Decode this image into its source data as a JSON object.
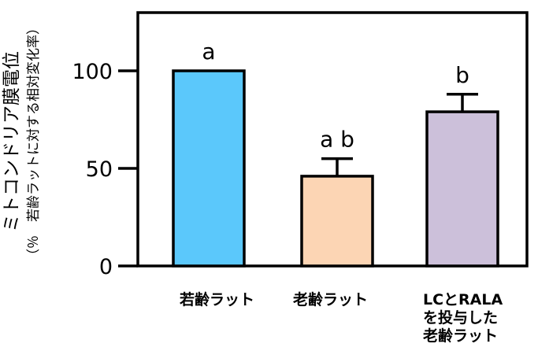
{
  "chart_data": {
    "type": "bar",
    "ylabel": "ミトコンドリア膜電位",
    "ylabel_sub": "（％　若齢ラットに対する相対変化率）",
    "ylim": [
      0,
      128
    ],
    "yticks": [
      0,
      50,
      100
    ],
    "ytick_labels": [
      "0",
      "50",
      "100"
    ],
    "categories": [
      [
        "若齢ラット"
      ],
      [
        "老齢ラット"
      ],
      [
        "LCとRALA",
        "を投与した",
        "老齢ラット"
      ]
    ],
    "values": [
      100,
      46,
      79
    ],
    "errors": [
      0,
      9,
      9
    ],
    "significance": [
      "a",
      "a b",
      "b"
    ],
    "colors": [
      "#5bc8fb",
      "#fcd5b4",
      "#ccc0da"
    ],
    "grid": false,
    "legend": "none"
  }
}
